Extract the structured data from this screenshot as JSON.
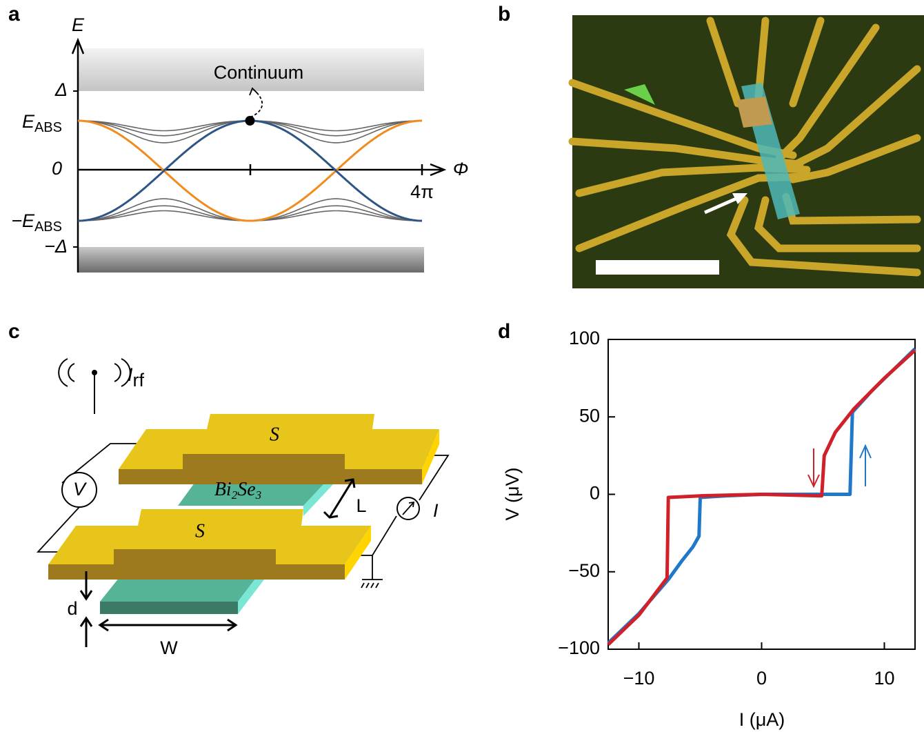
{
  "panel_labels": [
    "a",
    "b",
    "c",
    "d"
  ],
  "panel_a": {
    "y_axis_label": "E",
    "x_axis_label": "Φ",
    "band_label": "Continuum",
    "delta_label": "Δ",
    "e_abs_label": {
      "main": "E",
      "sub": "ABS"
    },
    "zero_label": "0",
    "neg_e_abs_label": {
      "main": "−E",
      "sub": "ABS"
    },
    "neg_delta_label": "−Δ",
    "x_end_label": "4π"
  },
  "panel_c": {
    "rf_label": {
      "main": "I",
      "sub": "rf"
    },
    "electrode_labels": [
      "S",
      "S"
    ],
    "material_label": {
      "a": "Bi",
      "a_sub": "2",
      "b": "Se",
      "b_sub": "3"
    },
    "length_label": "L",
    "width_label": "W",
    "thickness_label": "d",
    "voltmeter_label": "V",
    "current_label": "I"
  },
  "chart_data": {
    "type": "line",
    "x_label": "I (μA)",
    "y_label": "V (μV)",
    "xlim": [
      -12.5,
      12.5
    ],
    "ylim": [
      -100,
      100
    ],
    "xticks": [
      {
        "value": -10,
        "label": "−10"
      },
      0,
      10
    ],
    "yticks": [
      {
        "value": -100,
        "label": "−100"
      },
      {
        "value": -50,
        "label": "−50"
      },
      0,
      50,
      100
    ],
    "series": [
      {
        "name": "sweep up",
        "color": "#1f78c8",
        "x": [
          -12.5,
          -10,
          -7.6,
          -6.5,
          -5.6,
          -5.1,
          -5.0,
          -3,
          0,
          3,
          7.2,
          7.4,
          9,
          12.5
        ],
        "values": [
          -96,
          -77,
          -55,
          -43,
          -34,
          -27,
          -2,
          -1,
          0,
          0,
          0,
          53,
          67,
          94
        ]
      },
      {
        "name": "sweep down",
        "color": "#d0202a",
        "x": [
          -12.5,
          -10,
          -7.7,
          -7.6,
          -5,
          0,
          4.9,
          5.1,
          6,
          7.5,
          10,
          12.5
        ],
        "values": [
          -97,
          -78,
          -54,
          -2,
          -1,
          0,
          -1,
          25,
          40,
          55,
          75,
          93
        ]
      }
    ]
  }
}
